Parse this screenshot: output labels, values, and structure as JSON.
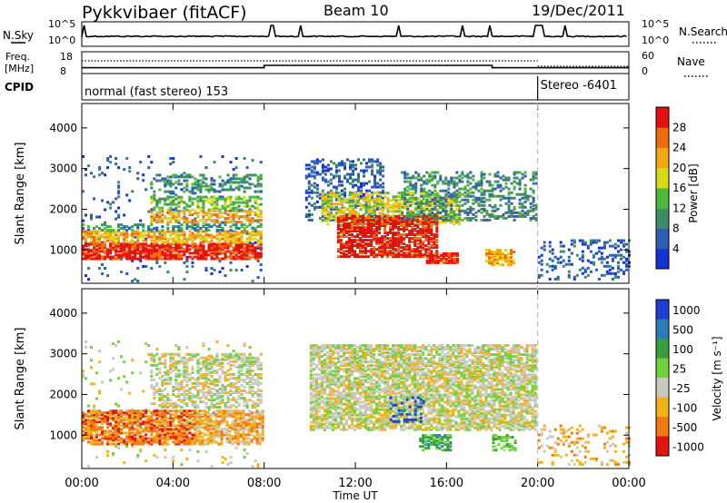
{
  "header": {
    "title": "Pykkvibaer (fitACF)",
    "beam": "Beam 10",
    "date": "19/Dec/2011"
  },
  "status_panels": {
    "nsky_label": "N.Sky",
    "nsearch_label": "N.Search",
    "nsky_ticks": [
      "10^5",
      "10^0"
    ],
    "nsearch_ticks": [
      "10^5",
      "10^0"
    ],
    "freq_label_1": "Freq.",
    "freq_label_2": "[MHz]",
    "freq_ticks": [
      "18",
      "8"
    ],
    "nave_label": "Nave",
    "nave_ticks": [
      "60",
      "0"
    ],
    "cpid_label": "CPID",
    "cpid_segments": [
      {
        "label": "normal (fast stereo) 153",
        "start_hour": 0,
        "end_hour": 20
      },
      {
        "label": "Stereo -6401",
        "start_hour": 20,
        "end_hour": 24
      }
    ],
    "freq_series": [
      {
        "start_hour": 0,
        "end_hour": 8,
        "mhz": 10.7
      },
      {
        "start_hour": 8,
        "end_hour": 18,
        "mhz": 12.0
      },
      {
        "start_hour": 18,
        "end_hour": 24,
        "mhz": 10.7
      }
    ],
    "nsky_spikes_hours": [
      0.1,
      8.35,
      9.6,
      13.9,
      16.7,
      17.9,
      19.95,
      20.15,
      21.2
    ]
  },
  "chart_data": [
    {
      "type": "heatmap",
      "name": "power",
      "ylabel": "Slant Range [km]",
      "xlabel": "",
      "x_range_hours": [
        0,
        24
      ],
      "ylim": [
        180,
        4600
      ],
      "yticks": [
        "1000",
        "2000",
        "3000",
        "4000"
      ],
      "yticks_values": [
        1000,
        2000,
        3000,
        4000
      ],
      "colorbar": {
        "label": "Power [dB]",
        "range": [
          0,
          32
        ],
        "ticks": [
          "4",
          "8",
          "12",
          "16",
          "20",
          "24",
          "28"
        ],
        "tick_values": [
          4,
          8,
          12,
          16,
          20,
          24,
          28
        ],
        "colors": [
          "#1432d2",
          "#2e5db3",
          "#3c8d64",
          "#4fb83a",
          "#d9d915",
          "#f2a811",
          "#f06a0e",
          "#e3100d"
        ]
      },
      "echo_regions": [
        {
          "h0": 0.0,
          "h1": 7.9,
          "r0": 200,
          "r1": 3300,
          "p": 0.06,
          "lvl": 1
        },
        {
          "h0": 0.0,
          "h1": 7.9,
          "r0": 750,
          "r1": 1150,
          "p": 0.8,
          "lvl": 7
        },
        {
          "h0": 0.0,
          "h1": 7.9,
          "r0": 1150,
          "r1": 1450,
          "p": 0.6,
          "lvl": 5
        },
        {
          "h0": 0.0,
          "h1": 7.9,
          "r0": 1450,
          "r1": 1600,
          "p": 0.4,
          "lvl": 2
        },
        {
          "h0": 3.0,
          "h1": 7.9,
          "r0": 1650,
          "r1": 1950,
          "p": 0.6,
          "lvl": 5
        },
        {
          "h0": 3.0,
          "h1": 7.9,
          "r0": 1950,
          "r1": 2300,
          "p": 0.5,
          "lvl": 3
        },
        {
          "h0": 3.0,
          "h1": 7.9,
          "r0": 2400,
          "r1": 2850,
          "p": 0.35,
          "lvl": 2
        },
        {
          "h0": 9.8,
          "h1": 13.2,
          "r0": 1700,
          "r1": 3200,
          "p": 0.35,
          "lvl": 1
        },
        {
          "h0": 10.5,
          "h1": 16.5,
          "r0": 1600,
          "r1": 2400,
          "p": 0.55,
          "lvl": 4
        },
        {
          "h0": 11.2,
          "h1": 15.6,
          "r0": 800,
          "r1": 1800,
          "p": 0.75,
          "lvl": 7
        },
        {
          "h0": 15.1,
          "h1": 16.5,
          "r0": 650,
          "r1": 900,
          "p": 0.8,
          "lvl": 7
        },
        {
          "h0": 14.0,
          "h1": 20.0,
          "r0": 1700,
          "r1": 2900,
          "p": 0.4,
          "lvl": 2
        },
        {
          "h0": 17.7,
          "h1": 19.0,
          "r0": 600,
          "r1": 1000,
          "p": 0.6,
          "lvl": 5
        },
        {
          "h0": 20.0,
          "h1": 24.0,
          "r0": 250,
          "r1": 1200,
          "p": 0.22,
          "lvl": 1
        }
      ]
    },
    {
      "type": "heatmap",
      "name": "velocity",
      "ylabel": "Slant Range [km]",
      "xlabel": "Time UT",
      "x_range_hours": [
        0,
        24
      ],
      "xticks": [
        "00:00",
        "04:00",
        "08:00",
        "12:00",
        "16:00",
        "20:00",
        "00:00"
      ],
      "xticks_hours": [
        0,
        4,
        8,
        12,
        16,
        20,
        24
      ],
      "ylim": [
        180,
        4600
      ],
      "yticks": [
        "1000",
        "2000",
        "3000",
        "4000"
      ],
      "yticks_values": [
        1000,
        2000,
        3000,
        4000
      ],
      "colorbar": {
        "label": "Velocity [m s⁻¹]",
        "ticks": [
          "1000",
          "500",
          "100",
          "25",
          "-25",
          "-100",
          "-500",
          "-1000"
        ],
        "colors": [
          "#1f3ed6",
          "#2f7bb8",
          "#3a9c3a",
          "#6fd23a",
          "#c8c8c0",
          "#f2b21a",
          "#f07a10",
          "#e3140d"
        ]
      },
      "echo_regions": [
        {
          "h0": 0.0,
          "h1": 7.9,
          "r0": 200,
          "r1": 3300,
          "p": 0.05,
          "lvl": 4
        },
        {
          "h0": 0.0,
          "h1": 5.0,
          "r0": 750,
          "r1": 1600,
          "p": 0.75,
          "lvl": 6
        },
        {
          "h0": 5.0,
          "h1": 7.9,
          "r0": 750,
          "r1": 1600,
          "p": 0.7,
          "lvl": 5
        },
        {
          "h0": 3.0,
          "h1": 7.9,
          "r0": 1650,
          "r1": 3000,
          "p": 0.45,
          "lvl": 4
        },
        {
          "h0": 10.0,
          "h1": 19.9,
          "r0": 1100,
          "r1": 3200,
          "p": 0.7,
          "lvl": 4
        },
        {
          "h0": 14.8,
          "h1": 16.2,
          "r0": 600,
          "r1": 1000,
          "p": 0.7,
          "lvl": 2
        },
        {
          "h0": 13.5,
          "h1": 15.0,
          "r0": 1300,
          "r1": 1900,
          "p": 0.25,
          "lvl": 0
        },
        {
          "h0": 18.0,
          "h1": 19.0,
          "r0": 600,
          "r1": 1000,
          "p": 0.5,
          "lvl": 3
        },
        {
          "h0": 20.0,
          "h1": 24.0,
          "r0": 250,
          "r1": 1200,
          "p": 0.18,
          "lvl": 5
        }
      ]
    }
  ]
}
